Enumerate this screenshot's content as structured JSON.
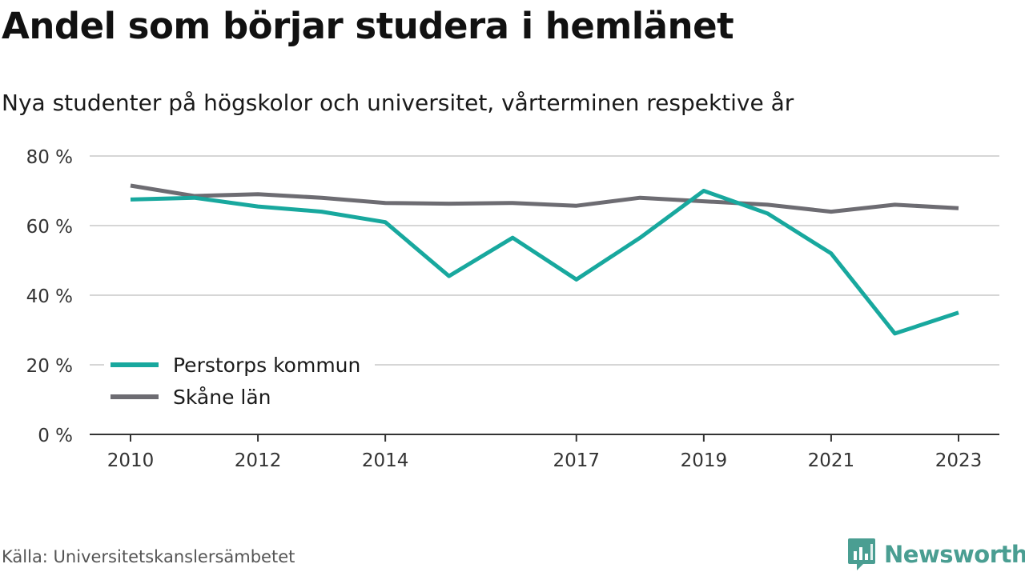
{
  "header": {
    "title": "Andel som börjar studera i hemlänet",
    "subtitle": "Nya studenter på högskolor och universitet, vårterminen respektive år"
  },
  "footer": {
    "source": "Källa: Universitetskanslersämbetet",
    "brand": "Newsworthy"
  },
  "colors": {
    "accent": "#18a89e",
    "secondary": "#6d6c72",
    "grid": "#d6d6d6",
    "axis": "#333333"
  },
  "chart_data": {
    "type": "line",
    "title": "Andel som börjar studera i hemlänet",
    "subtitle": "Nya studenter på högskolor och universitet, vårterminen respektive år",
    "x": [
      2010,
      2011,
      2012,
      2013,
      2014,
      2015,
      2016,
      2017,
      2018,
      2019,
      2020,
      2021,
      2022,
      2023
    ],
    "xticks": [
      2010,
      2012,
      2014,
      2017,
      2019,
      2021,
      2023
    ],
    "yticks": [
      0,
      20,
      40,
      60,
      80
    ],
    "ytick_labels": [
      "0 %",
      "20 %",
      "40 %",
      "60 %",
      "80 %"
    ],
    "ylim": [
      0,
      80
    ],
    "grid": true,
    "legend_position": "bottom-left",
    "series": [
      {
        "name": "Perstorps kommun",
        "color": "#18a89e",
        "values": [
          67.5,
          68,
          65.5,
          64,
          61,
          45.5,
          56.5,
          44.5,
          56.5,
          70,
          63.5,
          52,
          29,
          35
        ]
      },
      {
        "name": "Skåne län",
        "color": "#6d6c72",
        "values": [
          71.5,
          68.5,
          69,
          68,
          66.5,
          66.3,
          66.5,
          65.7,
          68,
          67,
          66,
          64,
          66,
          65
        ]
      }
    ]
  }
}
